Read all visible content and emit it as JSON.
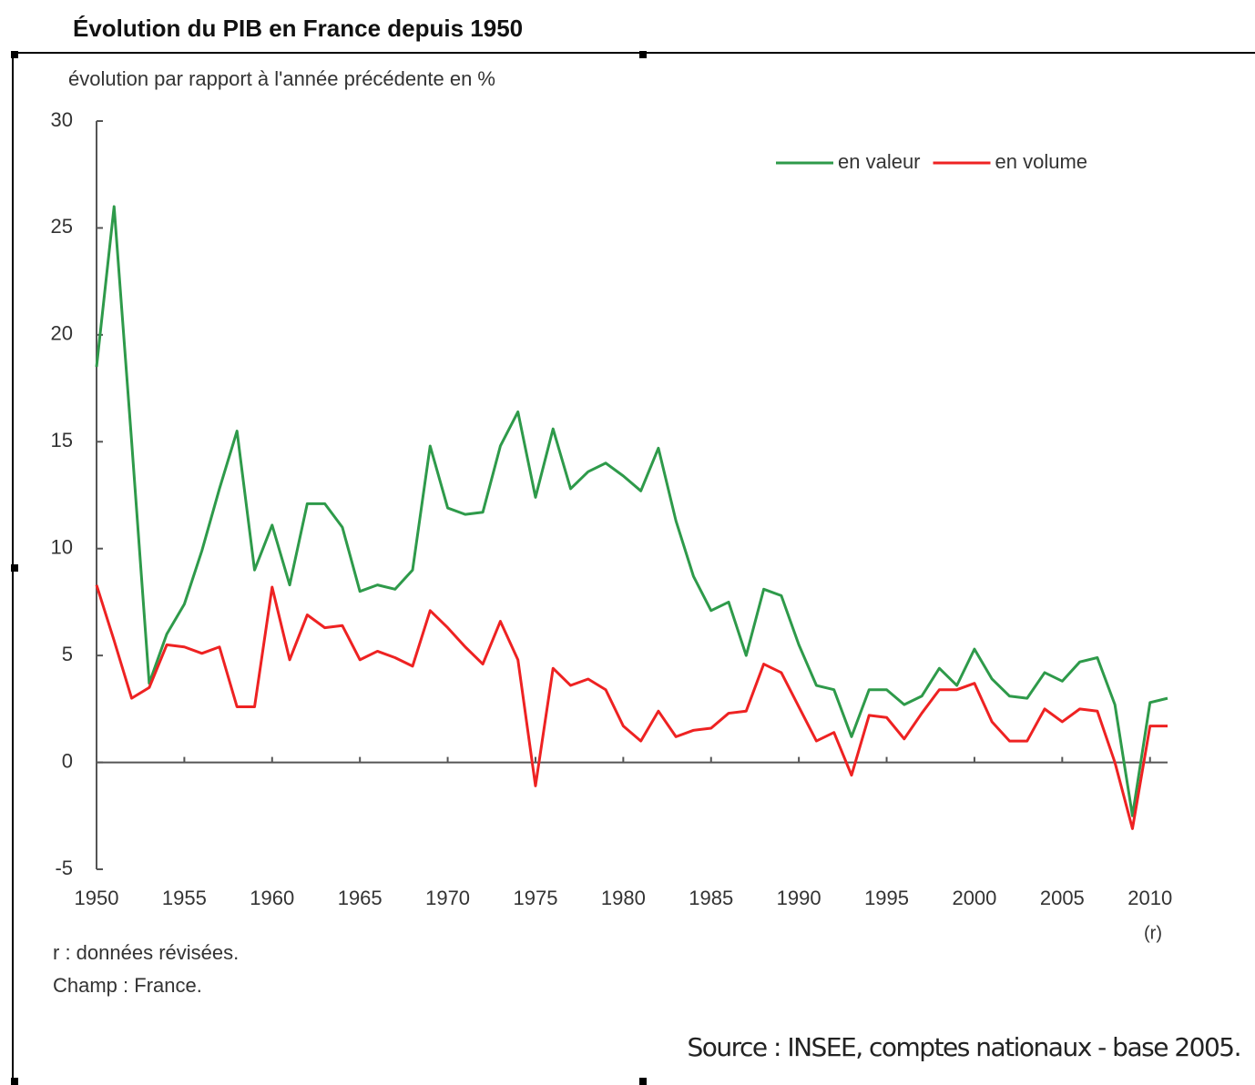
{
  "chart_data": {
    "type": "line",
    "title": "Évolution du PIB en France depuis 1950",
    "subtitle": "évolution par rapport à l'année précédente en %",
    "x_note": "(r)",
    "notes": [
      "r : données révisées.",
      "Champ : France."
    ],
    "source": "Source : INSEE, comptes nationaux - base 2005.",
    "x": [
      1950,
      1951,
      1952,
      1953,
      1954,
      1955,
      1956,
      1957,
      1958,
      1959,
      1960,
      1961,
      1962,
      1963,
      1964,
      1965,
      1966,
      1967,
      1968,
      1969,
      1970,
      1971,
      1972,
      1973,
      1974,
      1975,
      1976,
      1977,
      1978,
      1979,
      1980,
      1981,
      1982,
      1983,
      1984,
      1985,
      1986,
      1987,
      1988,
      1989,
      1990,
      1991,
      1992,
      1993,
      1994,
      1995,
      1996,
      1997,
      1998,
      1999,
      2000,
      2001,
      2002,
      2003,
      2004,
      2005,
      2006,
      2007,
      2008,
      2009,
      2010,
      2011
    ],
    "series": [
      {
        "name": "en valeur",
        "color": "#2e9a4a",
        "values": [
          18.5,
          26,
          15,
          3.7,
          6.0,
          7.4,
          9.9,
          12.8,
          15.5,
          9.0,
          11.1,
          8.3,
          12.1,
          12.1,
          11.0,
          8.0,
          8.3,
          8.1,
          9.0,
          14.8,
          11.9,
          11.6,
          11.7,
          14.8,
          16.4,
          12.4,
          15.6,
          12.8,
          13.6,
          14.0,
          13.4,
          12.7,
          14.7,
          11.3,
          8.7,
          7.1,
          7.5,
          5.0,
          8.1,
          7.8,
          5.5,
          3.6,
          3.4,
          1.2,
          3.4,
          3.4,
          2.7,
          3.1,
          4.4,
          3.6,
          5.3,
          3.9,
          3.1,
          3.0,
          4.2,
          3.8,
          4.7,
          4.9,
          2.7,
          -2.5,
          2.8,
          3.0
        ]
      },
      {
        "name": "en volume",
        "color": "#ee2222",
        "values": [
          8.3,
          5.7,
          3.0,
          3.5,
          5.5,
          5.4,
          5.1,
          5.4,
          2.6,
          2.6,
          8.2,
          4.8,
          6.9,
          6.3,
          6.4,
          4.8,
          5.2,
          4.9,
          4.5,
          7.1,
          6.3,
          5.4,
          4.6,
          6.6,
          4.8,
          -1.1,
          4.4,
          3.6,
          3.9,
          3.4,
          1.7,
          1.0,
          2.4,
          1.2,
          1.5,
          1.6,
          2.3,
          2.4,
          4.6,
          4.2,
          2.6,
          1.0,
          1.4,
          -0.6,
          2.2,
          2.1,
          1.1,
          2.3,
          3.4,
          3.4,
          3.7,
          1.9,
          1.0,
          1.0,
          2.5,
          1.9,
          2.5,
          2.4,
          0.0,
          -3.1,
          1.7,
          1.7
        ]
      }
    ],
    "xlim": [
      1950,
      2011
    ],
    "xticks": [
      1950,
      1955,
      1960,
      1965,
      1970,
      1975,
      1980,
      1985,
      1990,
      1995,
      2000,
      2005,
      2010
    ],
    "ylim": [
      -5,
      30
    ],
    "yticks": [
      -5,
      0,
      5,
      10,
      15,
      20,
      25,
      30
    ],
    "grid": false,
    "legend": "top-right"
  }
}
